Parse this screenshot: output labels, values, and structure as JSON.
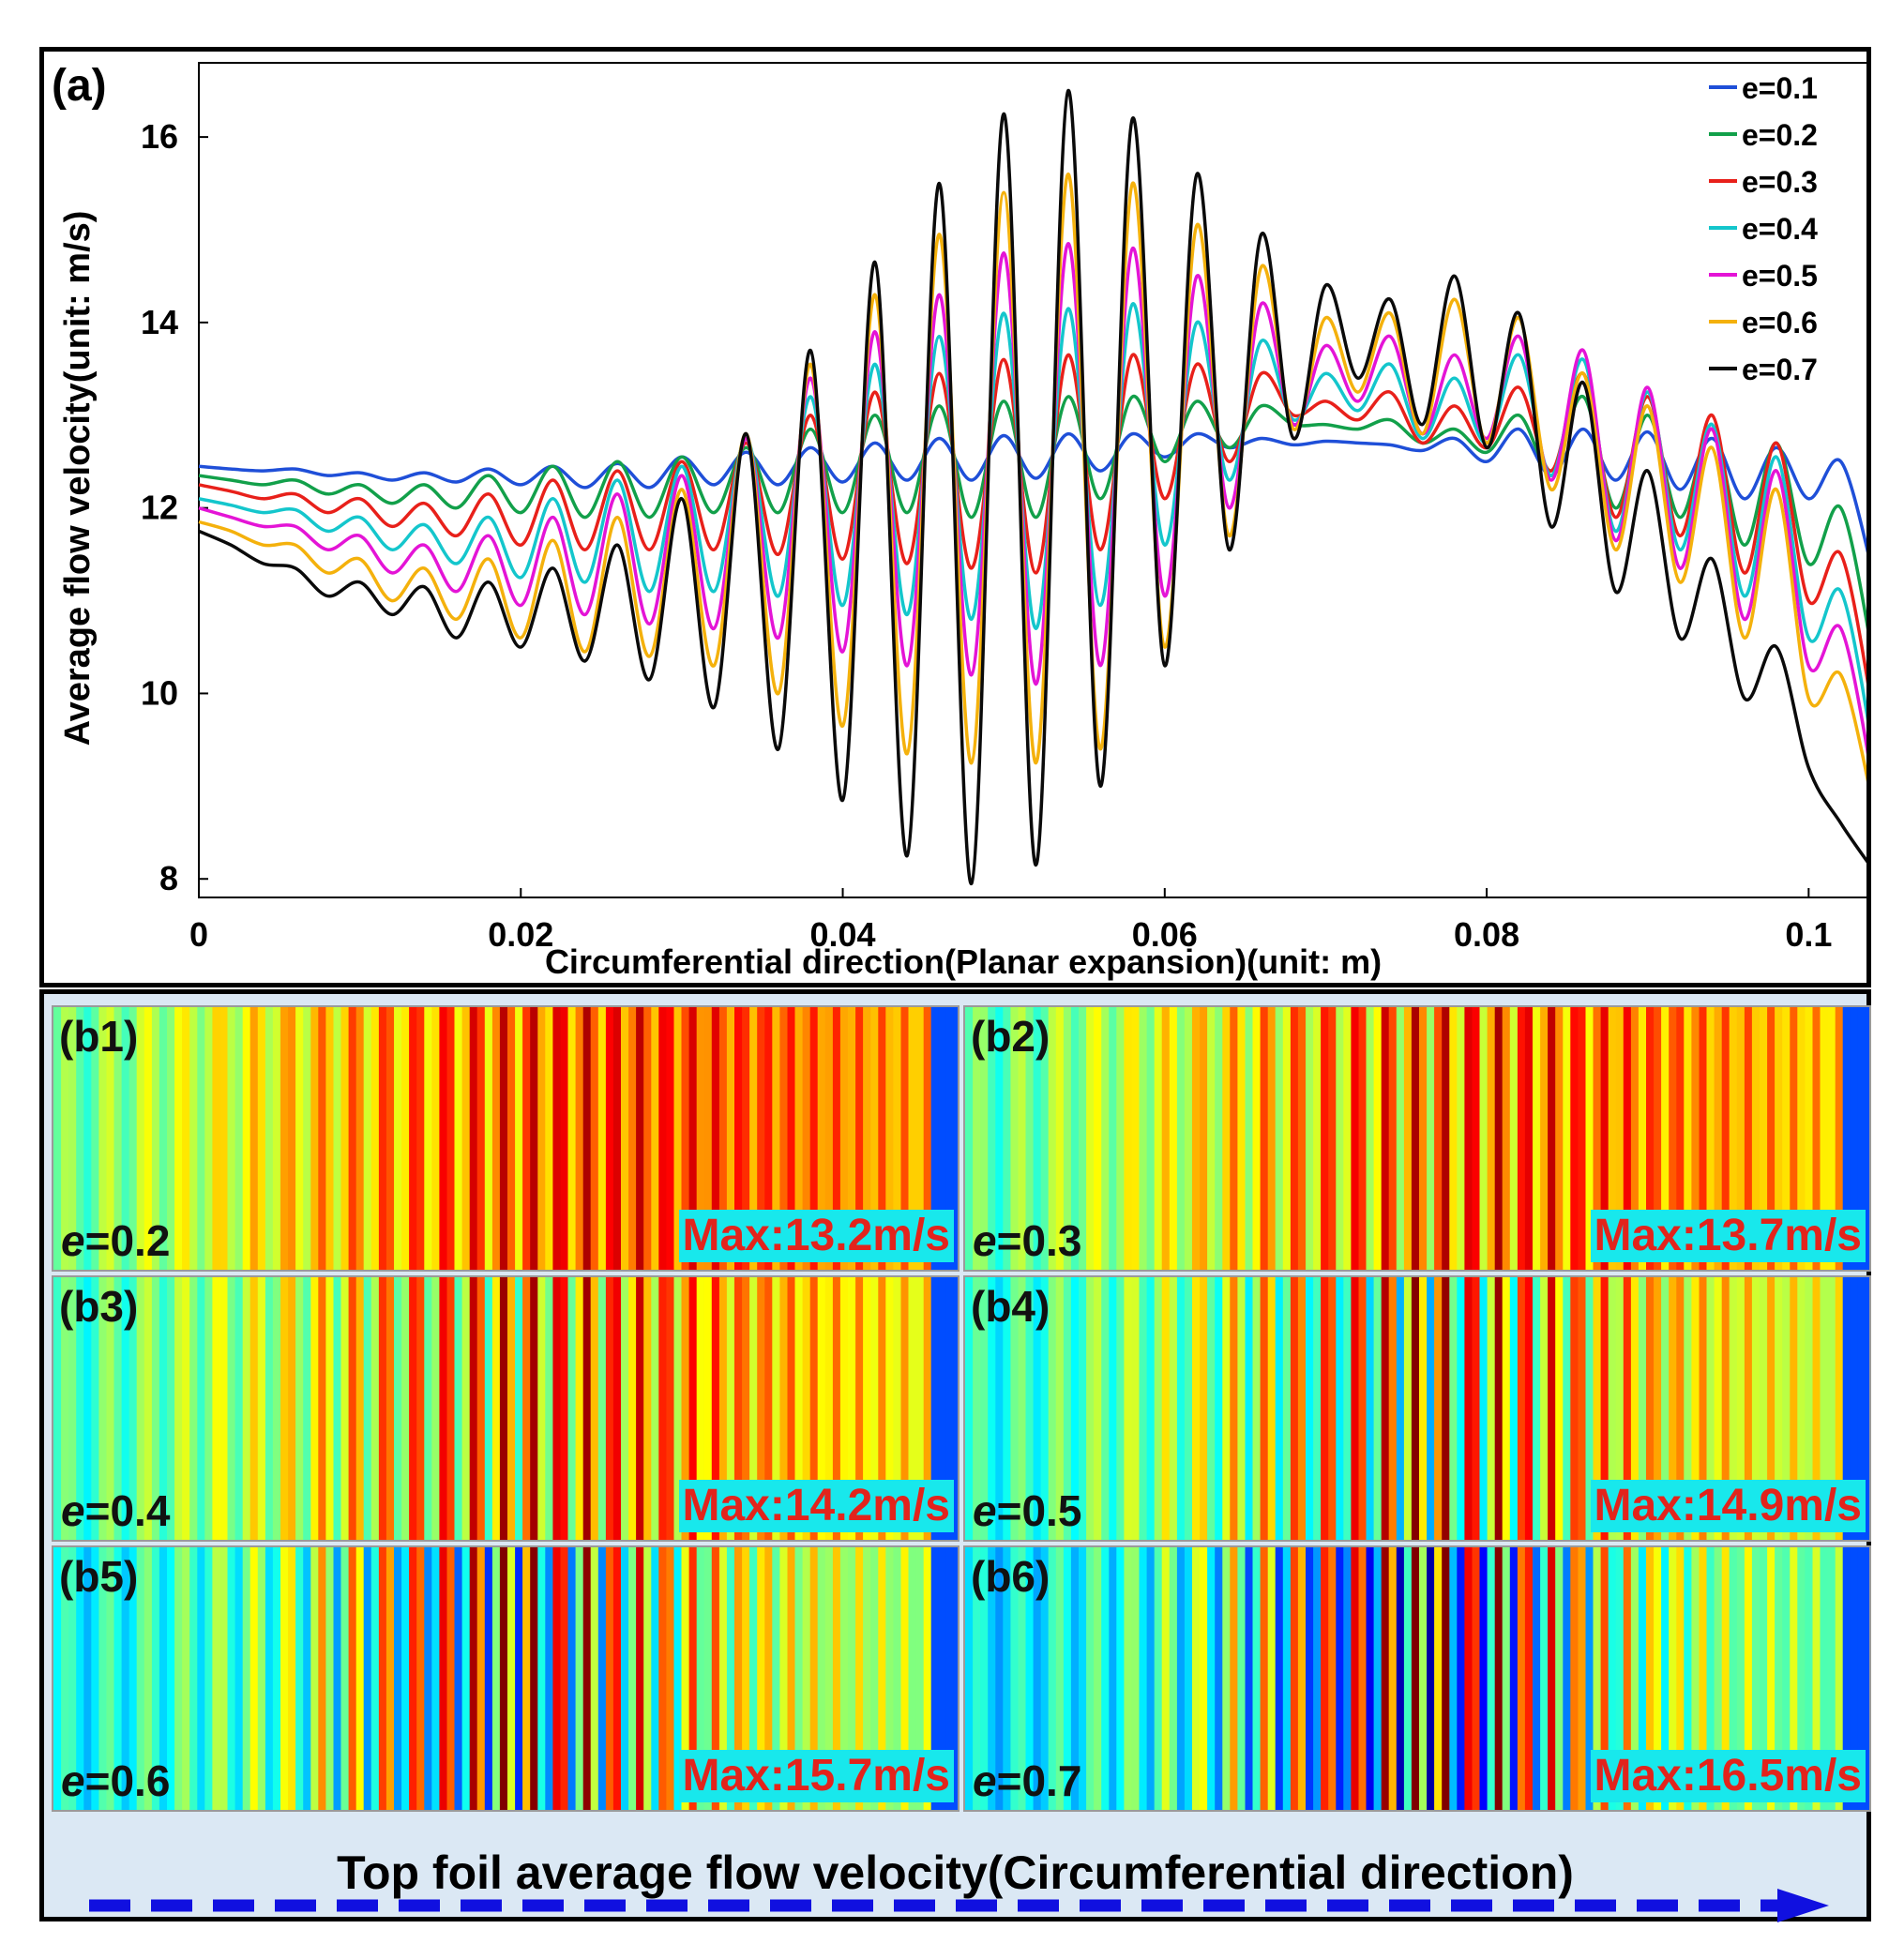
{
  "chart_data": {
    "type": "line",
    "panel_label": "(a)",
    "title": "",
    "xlabel": "Circumferential direction(Planar expansion)(unit: m)",
    "ylabel": "Average flow velocity(unit: m/s)",
    "xlim": [
      0,
      0.104
    ],
    "ylim": [
      7.8,
      16.8
    ],
    "xticks": [
      0,
      0.02,
      0.04,
      0.06,
      0.08,
      0.1
    ],
    "xtick_labels": [
      "0",
      "0.02",
      "0.04",
      "0.06",
      "0.08",
      "0.1"
    ],
    "yticks": [
      8,
      10,
      12,
      14,
      16
    ],
    "ytick_labels": [
      "8",
      "10",
      "12",
      "14",
      "16"
    ],
    "legend_position": "top-right",
    "x": [
      0,
      0.002,
      0.004,
      0.006,
      0.008,
      0.01,
      0.012,
      0.014,
      0.016,
      0.018,
      0.02,
      0.022,
      0.024,
      0.026,
      0.028,
      0.03,
      0.032,
      0.034,
      0.036,
      0.038,
      0.04,
      0.042,
      0.044,
      0.046,
      0.048,
      0.05,
      0.052,
      0.054,
      0.056,
      0.058,
      0.06,
      0.062,
      0.064,
      0.066,
      0.068,
      0.07,
      0.072,
      0.074,
      0.076,
      0.078,
      0.08,
      0.082,
      0.084,
      0.086,
      0.088,
      0.09,
      0.092,
      0.094,
      0.096,
      0.098,
      0.1,
      0.102,
      0.104
    ],
    "series": [
      {
        "name": "e=0.1",
        "color": "#1f4fd8",
        "values": [
          12.45,
          12.42,
          12.4,
          12.42,
          12.35,
          12.38,
          12.3,
          12.38,
          12.28,
          12.42,
          12.25,
          12.45,
          12.22,
          12.48,
          12.22,
          12.55,
          12.25,
          12.6,
          12.25,
          12.65,
          12.28,
          12.7,
          12.3,
          12.75,
          12.3,
          12.78,
          12.32,
          12.8,
          12.4,
          12.8,
          12.55,
          12.8,
          12.65,
          12.75,
          12.68,
          12.72,
          12.7,
          12.68,
          12.62,
          12.75,
          12.5,
          12.85,
          12.35,
          12.85,
          12.3,
          12.82,
          12.2,
          12.75,
          12.1,
          12.65,
          12.1,
          12.5,
          11.3
        ]
      },
      {
        "name": "e=0.2",
        "color": "#12a04a",
        "values": [
          12.35,
          12.3,
          12.25,
          12.3,
          12.15,
          12.25,
          12.05,
          12.25,
          12.0,
          12.35,
          11.95,
          12.45,
          11.9,
          12.5,
          11.9,
          12.55,
          11.95,
          12.65,
          11.95,
          12.85,
          11.95,
          13.0,
          11.95,
          13.1,
          11.9,
          13.15,
          11.9,
          13.2,
          12.1,
          13.2,
          12.5,
          13.15,
          12.65,
          13.1,
          12.9,
          12.9,
          12.85,
          12.95,
          12.7,
          12.85,
          12.6,
          13.0,
          12.4,
          13.2,
          12.0,
          13.0,
          11.9,
          12.85,
          11.6,
          12.7,
          11.4,
          12.0,
          10.4
        ]
      },
      {
        "name": "e=0.3",
        "color": "#e8201a",
        "values": [
          12.25,
          12.18,
          12.1,
          12.15,
          11.95,
          12.1,
          11.8,
          12.05,
          11.7,
          12.15,
          11.6,
          12.3,
          11.55,
          12.4,
          11.55,
          12.5,
          11.55,
          12.7,
          11.5,
          13.0,
          11.45,
          13.25,
          11.4,
          13.45,
          11.35,
          13.6,
          11.3,
          13.65,
          11.55,
          13.65,
          12.1,
          13.55,
          12.5,
          13.45,
          13.0,
          13.15,
          12.95,
          13.25,
          12.7,
          13.1,
          12.65,
          13.3,
          12.4,
          13.45,
          11.9,
          13.2,
          11.7,
          13.0,
          11.3,
          12.7,
          11.0,
          11.5,
          9.8
        ]
      },
      {
        "name": "e=0.4",
        "color": "#14c6cc",
        "values": [
          12.1,
          12.03,
          11.95,
          11.98,
          11.75,
          11.9,
          11.55,
          11.82,
          11.4,
          11.9,
          11.25,
          12.1,
          11.2,
          12.3,
          11.1,
          12.45,
          11.1,
          12.75,
          11.05,
          13.2,
          10.95,
          13.55,
          10.85,
          13.85,
          10.8,
          14.1,
          10.7,
          14.15,
          10.95,
          14.2,
          11.6,
          14.0,
          12.3,
          13.8,
          12.95,
          13.45,
          13.05,
          13.55,
          12.75,
          13.4,
          12.7,
          13.65,
          12.35,
          13.6,
          11.75,
          13.25,
          11.55,
          12.9,
          11.05,
          12.55,
          10.6,
          11.1,
          9.4
        ]
      },
      {
        "name": "e=0.5",
        "color": "#e414d6",
        "values": [
          12.0,
          11.9,
          11.8,
          11.8,
          11.55,
          11.7,
          11.3,
          11.6,
          11.1,
          11.7,
          10.95,
          11.9,
          10.85,
          12.15,
          10.75,
          12.35,
          10.7,
          12.75,
          10.6,
          13.4,
          10.45,
          13.9,
          10.3,
          14.3,
          10.2,
          14.75,
          10.1,
          14.85,
          10.3,
          14.8,
          11.05,
          14.5,
          12.0,
          14.2,
          12.9,
          13.75,
          13.15,
          13.85,
          12.8,
          13.65,
          12.75,
          13.85,
          12.3,
          13.7,
          11.65,
          13.3,
          11.35,
          12.85,
          10.8,
          12.4,
          10.3,
          10.7,
          9.05
        ]
      },
      {
        "name": "e=0.6",
        "color": "#f4b10c",
        "values": [
          11.85,
          11.75,
          11.6,
          11.6,
          11.3,
          11.45,
          11.0,
          11.35,
          10.8,
          11.45,
          10.6,
          11.65,
          10.45,
          11.9,
          10.4,
          12.2,
          10.3,
          12.8,
          10.0,
          13.55,
          9.65,
          14.3,
          9.35,
          14.95,
          9.25,
          15.4,
          9.25,
          15.6,
          9.4,
          15.5,
          10.5,
          15.05,
          11.7,
          14.6,
          12.85,
          14.05,
          13.25,
          14.1,
          12.8,
          14.25,
          12.7,
          14.05,
          12.2,
          13.45,
          11.55,
          13.1,
          11.2,
          12.65,
          10.6,
          12.2,
          9.95,
          10.2,
          8.8
        ]
      },
      {
        "name": "e=0.7",
        "color": "#0a0a0a",
        "values": [
          11.75,
          11.6,
          11.4,
          11.35,
          11.05,
          11.2,
          10.85,
          11.15,
          10.6,
          11.2,
          10.5,
          11.35,
          10.35,
          11.6,
          10.15,
          12.1,
          9.85,
          12.8,
          9.4,
          13.7,
          8.85,
          14.65,
          8.25,
          15.5,
          7.95,
          16.25,
          8.15,
          16.5,
          9.0,
          16.2,
          10.3,
          15.6,
          11.55,
          14.95,
          12.75,
          14.4,
          13.4,
          14.25,
          12.9,
          14.5,
          12.65,
          14.1,
          11.8,
          13.35,
          11.1,
          12.4,
          10.6,
          11.45,
          9.95,
          10.5,
          9.2,
          8.6,
          8.1
        ]
      }
    ]
  },
  "contour_panels": [
    {
      "id": "(b1)",
      "e_var": "e",
      "e_value": "=0.2",
      "max_label": "Max:13.2m/s",
      "contrast": 0.18
    },
    {
      "id": "(b2)",
      "e_var": "e",
      "e_value": "=0.3",
      "max_label": "Max:13.7m/s",
      "contrast": 0.28
    },
    {
      "id": "(b3)",
      "e_var": "e",
      "e_value": "=0.4",
      "max_label": "Max:14.2m/s",
      "contrast": 0.4
    },
    {
      "id": "(b4)",
      "e_var": "e",
      "e_value": "=0.5",
      "max_label": "Max:14.9m/s",
      "contrast": 0.55
    },
    {
      "id": "(b5)",
      "e_var": "e",
      "e_value": "=0.6",
      "max_label": "Max:15.7m/s",
      "contrast": 0.7
    },
    {
      "id": "(b6)",
      "e_var": "e",
      "e_value": "=0.7",
      "max_label": "Max:16.5m/s",
      "contrast": 0.85
    }
  ],
  "footer": {
    "title": "Top foil average flow velocity(Circumferential direction)",
    "arrow_color": "#1010e0"
  }
}
